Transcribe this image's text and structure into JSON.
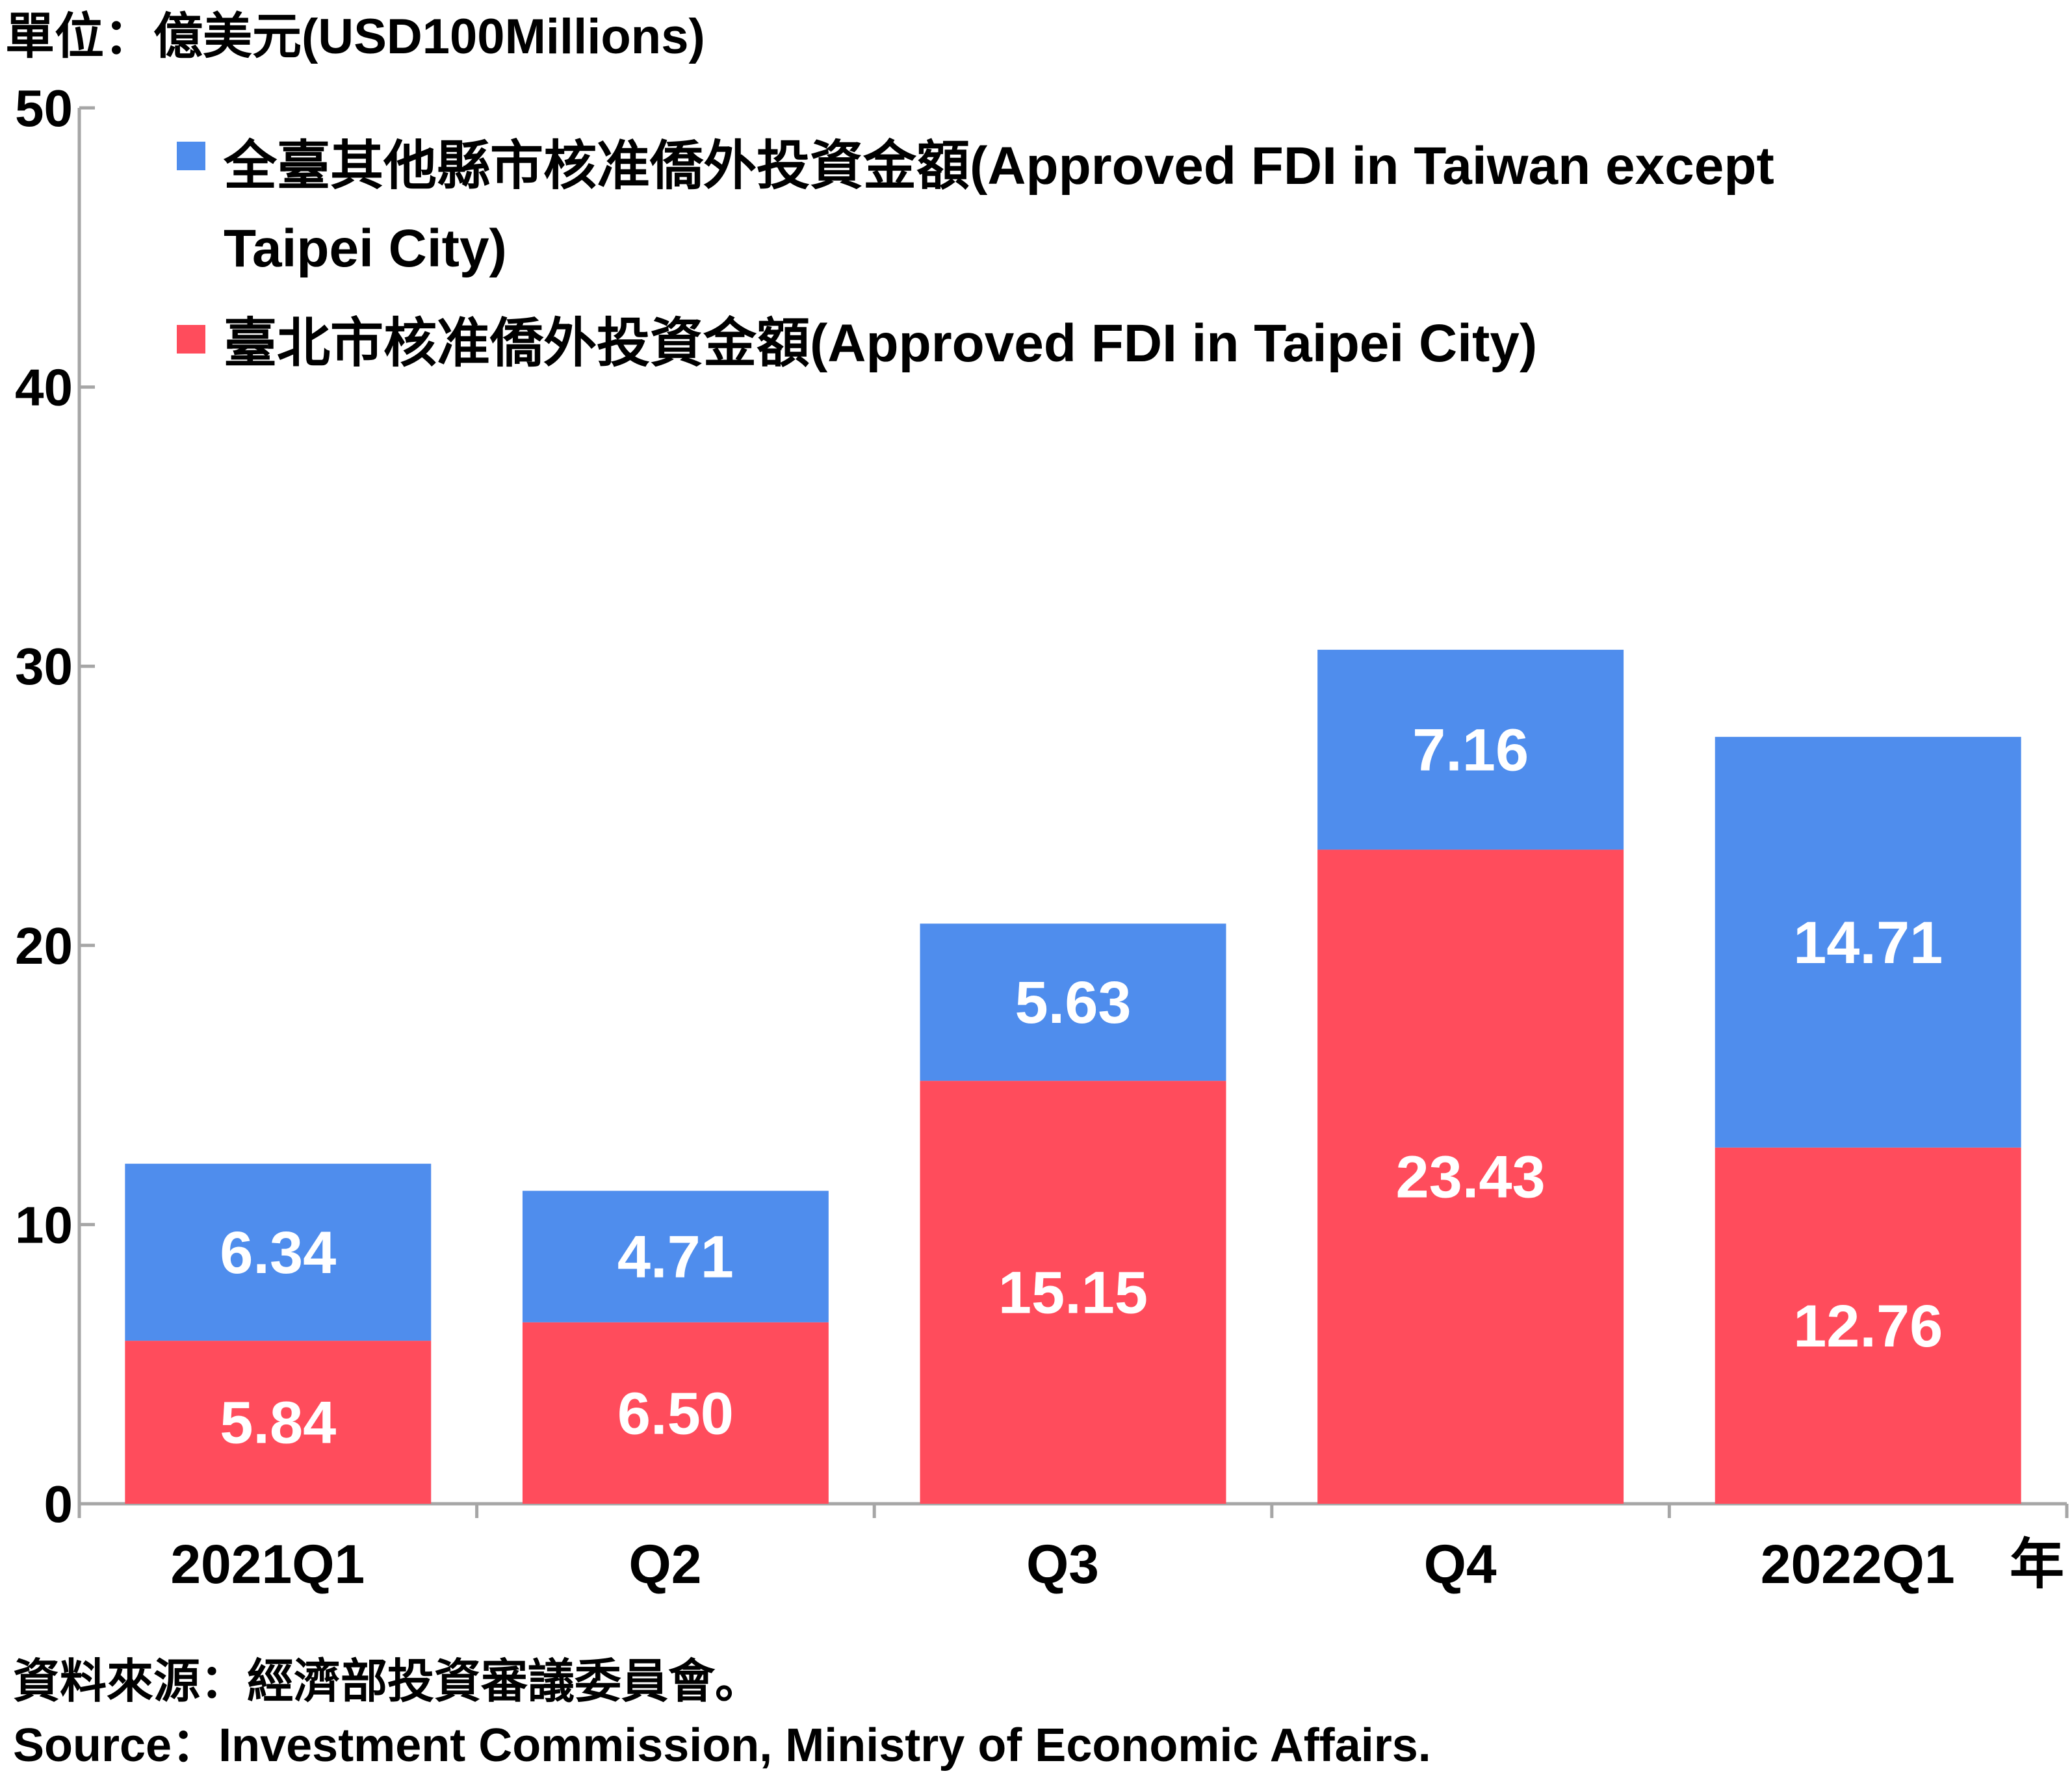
{
  "unit_label": "單位：億美元(USD100Millions)",
  "source": {
    "zh": "資料來源：經濟部投資審議委員會。",
    "en": "Source：Investment Commission, Ministry of Economic Affairs."
  },
  "legend": {
    "other": {
      "line1": "全臺其他縣市核准僑外投資金額(Approved FDI in Taiwan except",
      "line2": "Taipei City)"
    },
    "taipei": {
      "line1": "臺北市核准僑外投資金額(Approved FDI in Taipei City)"
    }
  },
  "colors": {
    "taipei": "#ff4c5c",
    "other": "#4f8ded",
    "axis": "#a6a6a6",
    "text": "#000000",
    "label": "#ffffff"
  },
  "chart_data": {
    "type": "bar",
    "stacked": true,
    "categories": [
      "2021Q1",
      "Q2",
      "Q3",
      "Q4",
      "2022Q1"
    ],
    "x_unit_label": "年",
    "ylim": [
      0,
      50
    ],
    "yticks": [
      "0",
      "10",
      "20",
      "30",
      "40",
      "50"
    ],
    "legend_position": "top-left",
    "series": [
      {
        "name": "臺北市核准僑外投資金額(Approved FDI in Taipei City)",
        "key": "taipei",
        "values": [
          5.84,
          6.5,
          15.15,
          23.43,
          12.76
        ],
        "labels": [
          "5.84",
          "6.50",
          "15.15",
          "23.43",
          "12.76"
        ]
      },
      {
        "name": "全臺其他縣市核准僑外投資金額(Approved FDI in Taiwan except Taipei City)",
        "key": "other",
        "values": [
          6.34,
          4.71,
          5.63,
          7.16,
          14.71
        ],
        "labels": [
          "6.34",
          "4.71",
          "5.63",
          "7.16",
          "14.71"
        ]
      }
    ]
  }
}
